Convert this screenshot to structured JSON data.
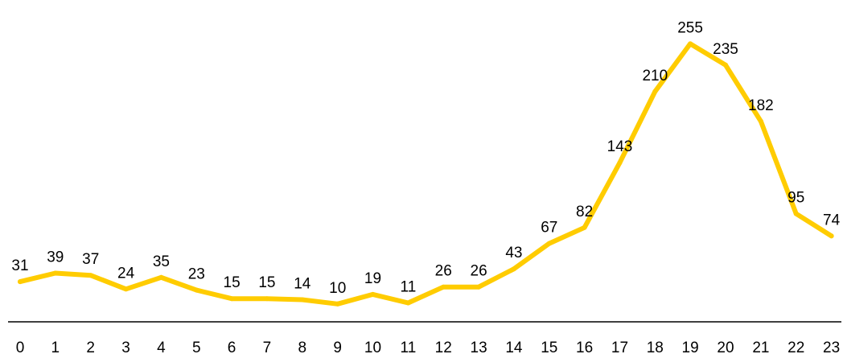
{
  "chart_data": {
    "type": "line",
    "title": "",
    "xlabel": "",
    "ylabel": "",
    "categories": [
      "0",
      "1",
      "2",
      "3",
      "4",
      "5",
      "6",
      "7",
      "8",
      "9",
      "10",
      "11",
      "12",
      "13",
      "14",
      "15",
      "16",
      "17",
      "18",
      "19",
      "20",
      "21",
      "22",
      "23"
    ],
    "series": [
      {
        "values": [
          31,
          39,
          37,
          24,
          35,
          23,
          15,
          15,
          14,
          10,
          19,
          11,
          26,
          26,
          43,
          67,
          82,
          143,
          210,
          255,
          235,
          182,
          95,
          74
        ],
        "color": "#FFCC00"
      }
    ],
    "ylim": [
      0,
      270
    ],
    "grid": false,
    "legend": "none",
    "data_labels": true,
    "axis_color": "#000000"
  }
}
